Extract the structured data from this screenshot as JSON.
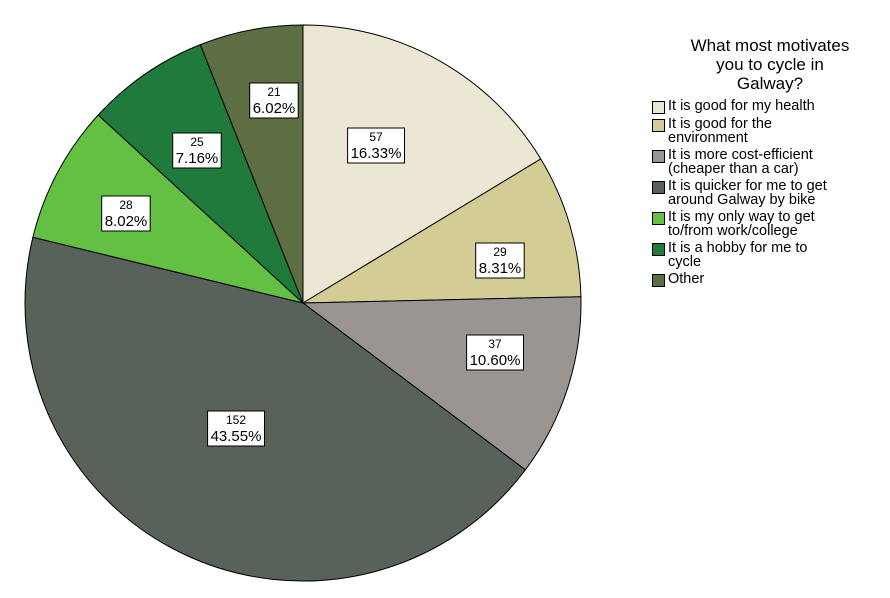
{
  "chart_data": {
    "type": "pie",
    "legend_title": "What most motivates\nyou to cycle in\nGalway?",
    "legend_position": "right",
    "slices": [
      {
        "label": "It is good for my health",
        "count_text": "57",
        "pct_text": "16.33%",
        "value": 16.33,
        "color": "#ece6d4"
      },
      {
        "label": "It is good for the\nenvironment",
        "count_text": "29",
        "pct_text": "8.31%",
        "value": 8.31,
        "color": "#d3cc94"
      },
      {
        "label": "It is more cost-efficient\n(cheaper than a car)",
        "count_text": "37",
        "pct_text": "10.60%",
        "value": 10.6,
        "color": "#999592"
      },
      {
        "label": "It is quicker for me to get\naround Galway by bike",
        "count_text": "152",
        "pct_text": "43.55%",
        "value": 43.55,
        "color": "#58625b"
      },
      {
        "label": "It is my only way to get\nto/from work/college",
        "count_text": "28",
        "pct_text": "8.02%",
        "value": 8.02,
        "color": "#64c043"
      },
      {
        "label": "It is a hobby for me to\ncycle",
        "count_text": "25",
        "pct_text": "7.16%",
        "value": 7.16,
        "color": "#1f7a3b"
      },
      {
        "label": "Other",
        "count_text": "21",
        "pct_text": "6.02%",
        "value": 6.02,
        "color": "#5e6e43"
      }
    ]
  }
}
